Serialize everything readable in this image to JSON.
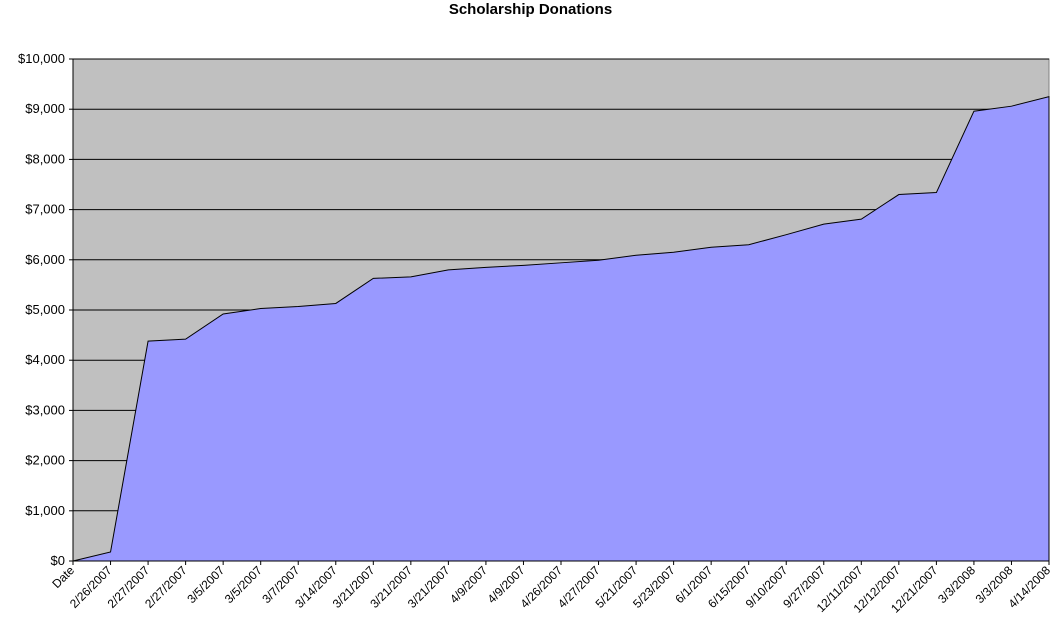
{
  "chart_data": {
    "type": "area",
    "title": "Scholarship Donations",
    "xlabel": "",
    "ylabel": "",
    "categories": [
      "Date",
      "2/26/2007",
      "2/27/2007",
      "2/27/2007",
      "3/5/2007",
      "3/5/2007",
      "3/7/2007",
      "3/14/2007",
      "3/21/2007",
      "3/21/2007",
      "3/21/2007",
      "4/9/2007",
      "4/9/2007",
      "4/26/2007",
      "4/27/2007",
      "5/21/2007",
      "5/23/2007",
      "6/1/2007",
      "6/15/2007",
      "9/10/2007",
      "9/27/2007",
      "12/11/2007",
      "12/12/2007",
      "12/21/2007",
      "3/3/2008",
      "3/3/2008",
      "4/14/2008"
    ],
    "values": [
      0,
      180,
      4380,
      4420,
      4920,
      5030,
      5070,
      5130,
      5630,
      5660,
      5800,
      5850,
      5890,
      5940,
      5990,
      6090,
      6150,
      6250,
      6300,
      6500,
      6710,
      6810,
      7300,
      7340,
      8960,
      9060,
      9250
    ],
    "ylim": [
      0,
      10000
    ],
    "yticks": [
      "$0",
      "$1,000",
      "$2,000",
      "$3,000",
      "$4,000",
      "$5,000",
      "$6,000",
      "$7,000",
      "$8,000",
      "$9,000",
      "$10,000"
    ],
    "grid": true,
    "legend": "none",
    "colors": {
      "plot_background": "#c0c0c0",
      "area_fill": "#9999ff",
      "area_stroke": "#000000",
      "gridline": "#000000"
    }
  }
}
